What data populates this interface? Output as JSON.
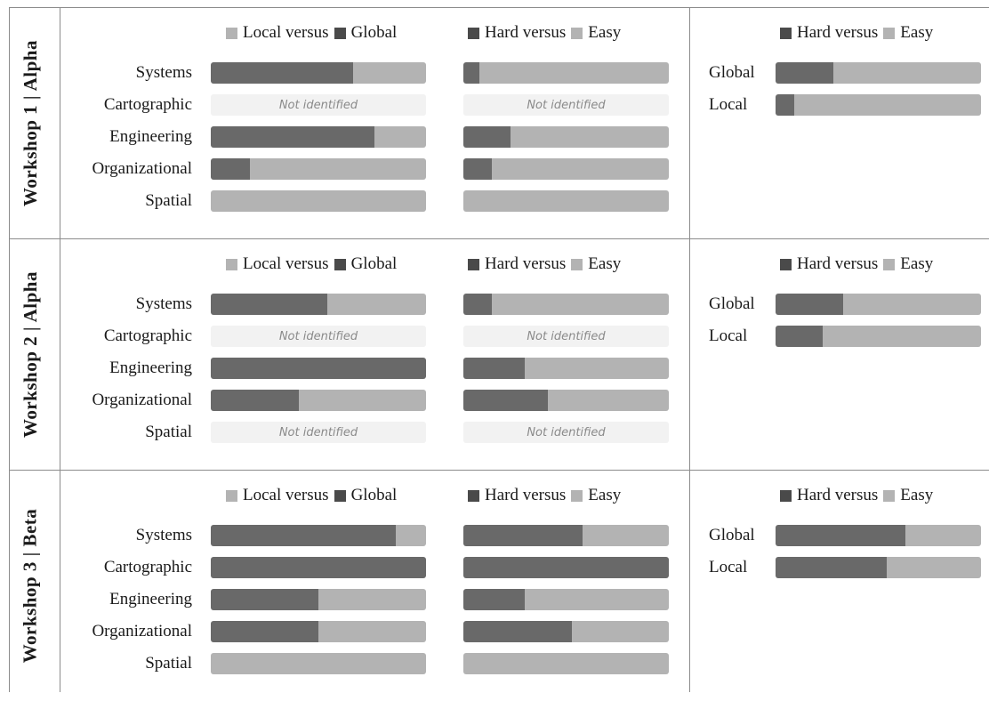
{
  "colors": {
    "dark": "#696969",
    "light": "#b3b3b3",
    "legend_dark": "#4a4a4a",
    "legend_light": "#b3b3b3",
    "not_identified_bg": "#f2f2f2"
  },
  "not_identified_text": "Not identified",
  "legends": {
    "local_global": {
      "a": "Local versus",
      "b": "Global"
    },
    "hard_easy": {
      "a": "Hard versus",
      "b": "Easy"
    }
  },
  "categories": [
    "Systems",
    "Cartographic",
    "Engineering",
    "Organizational",
    "Spatial"
  ],
  "right_categories": [
    "Global",
    "Local"
  ],
  "chart_data": {
    "type": "bar",
    "orientation": "horizontal-stacked-100",
    "panels": [
      {
        "title": "Workshop 1 | Alpha",
        "local_global_global_share": [
          66,
          null,
          76,
          18,
          0
        ],
        "hard_easy_hard_share": [
          8,
          null,
          23,
          14,
          0
        ],
        "scope_hard_easy_hard_share": [
          28,
          9
        ]
      },
      {
        "title": "Workshop 2 | Alpha",
        "local_global_global_share": [
          54,
          null,
          100,
          41,
          null
        ],
        "hard_easy_hard_share": [
          14,
          null,
          30,
          41,
          null
        ],
        "scope_hard_easy_hard_share": [
          33,
          23
        ]
      },
      {
        "title": "Workshop 3 | Beta",
        "local_global_global_share": [
          86,
          100,
          50,
          50,
          0
        ],
        "hard_easy_hard_share": [
          58,
          100,
          30,
          53,
          0
        ],
        "scope_hard_easy_hard_share": [
          63,
          54
        ]
      }
    ]
  }
}
